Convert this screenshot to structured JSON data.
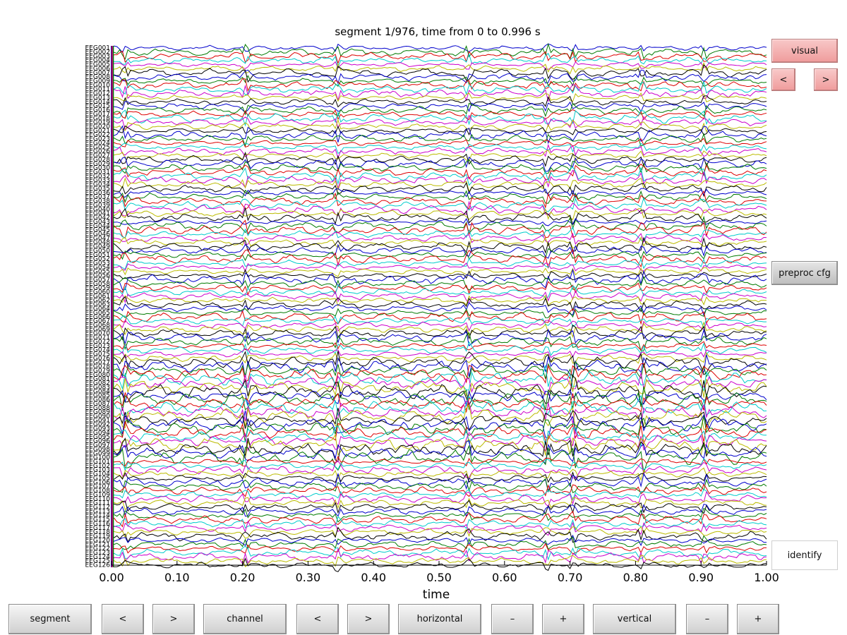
{
  "chart_data": {
    "type": "line",
    "title": "segment 1/976, time from 0 to 0.996 s",
    "xlabel": "time",
    "ylabel": "",
    "xlim": [
      0.0,
      1.0
    ],
    "x_ticks": [
      "0.00",
      "0.10",
      "0.20",
      "0.30",
      "0.40",
      "0.50",
      "0.60",
      "0.70",
      "0.80",
      "0.90",
      "1.00"
    ],
    "channel_count": 126,
    "channel_prefix": "EEG",
    "series_colors": [
      "#0000cc",
      "#007a00",
      "#dd0000",
      "#00cccc",
      "#cc00cc",
      "#bbbb00",
      "#000000"
    ],
    "grid": false,
    "legend": "none"
  },
  "side_buttons": {
    "visual": "visual",
    "prev": "<",
    "next": ">",
    "preproc": "preproc cfg",
    "identify": "identify"
  },
  "bottom_buttons": {
    "segment": "segment",
    "segment_prev": "<",
    "segment_next": ">",
    "channel": "channel",
    "channel_prev": "<",
    "channel_next": ">",
    "horizontal": "horizontal",
    "horizontal_minus": "–",
    "horizontal_plus": "+",
    "vertical": "vertical",
    "vertical_minus": "–",
    "vertical_plus": "+"
  }
}
